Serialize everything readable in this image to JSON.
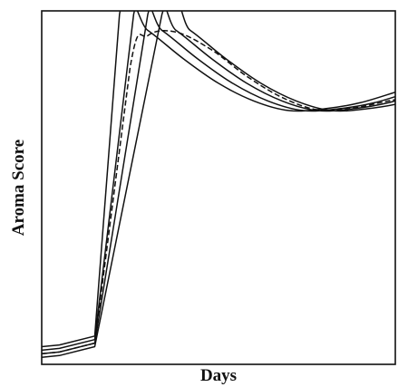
{
  "chart_data": {
    "type": "line",
    "title": "",
    "xlabel": "Days",
    "ylabel": "Aroma Score",
    "xlim": [
      0,
      100
    ],
    "ylim": [
      0,
      100
    ],
    "grid": false,
    "legend": "none",
    "tick_labels": false,
    "colors": {
      "line": "#111111",
      "axis": "#111111",
      "background": "#ffffff"
    },
    "series": [
      {
        "style": "solid",
        "x": [
          0,
          5,
          15,
          22,
          30,
          40,
          50,
          60,
          70,
          80,
          90,
          100
        ],
        "y": [
          5,
          5.5,
          8,
          99,
          94.5,
          86.5,
          79.5,
          74.5,
          71.8,
          72.3,
          74,
          77
        ]
      },
      {
        "style": "solid",
        "x": [
          0,
          5,
          15,
          26,
          34,
          44,
          54,
          64,
          74,
          84,
          94,
          104
        ],
        "y": [
          4,
          4.5,
          7,
          99,
          94.5,
          86.5,
          79.5,
          74.5,
          71.8,
          72.3,
          74,
          77
        ]
      },
      {
        "style": "solid",
        "x": [
          0,
          5,
          15,
          30,
          38,
          48,
          58,
          68,
          78,
          88,
          98,
          108
        ],
        "y": [
          3,
          3.5,
          6,
          99,
          94.5,
          86.5,
          79.5,
          74.5,
          71.8,
          72.3,
          74,
          77
        ]
      },
      {
        "style": "solid",
        "x": [
          0,
          5,
          15,
          34,
          42,
          52,
          62,
          72,
          82,
          92,
          102,
          112
        ],
        "y": [
          2,
          2.5,
          5,
          99,
          94.5,
          86.5,
          79.5,
          74.5,
          71.8,
          72.3,
          74,
          77
        ]
      },
      {
        "style": "dashed",
        "x": [
          0,
          5,
          15,
          25,
          30,
          38,
          48,
          58,
          68,
          78,
          88,
          98,
          106
        ],
        "y": [
          3,
          3.5,
          6,
          84,
          93,
          94,
          89,
          81.5,
          75.5,
          72,
          72.5,
          74.5,
          76
        ]
      }
    ]
  }
}
